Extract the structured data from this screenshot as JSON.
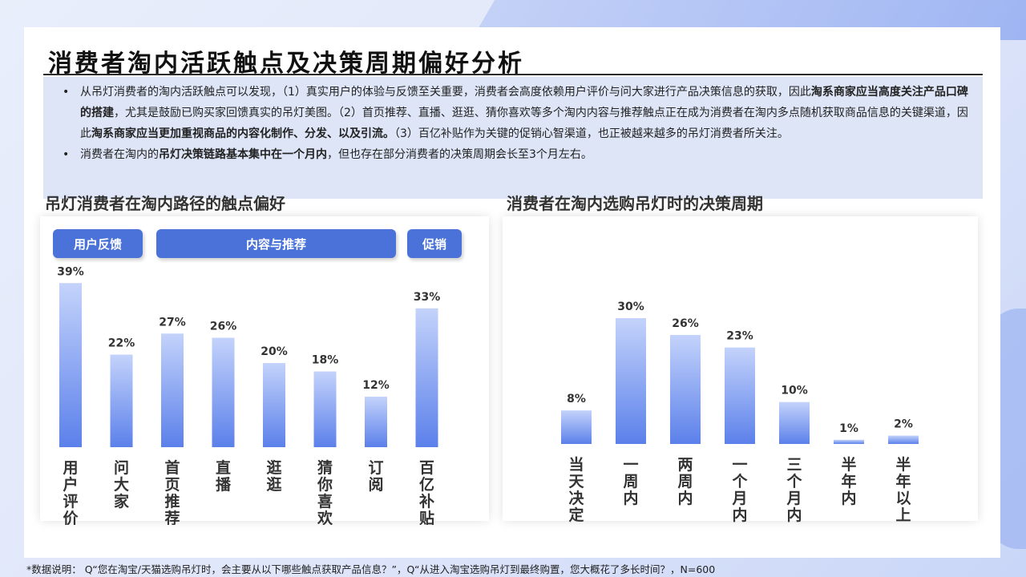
{
  "title": "消费者淘内活跃触点及决策周期偏好分析",
  "summary": {
    "bullet_symbol": "•",
    "b1_p1": "从吊灯消费者的淘内活跃触点可以发现，（1）真实用户的体验与反馈至关重要，消费者会高度依赖用户评价与问大家进行产品决策信息的获取，因此",
    "b1_bold1": "淘系商家应当高度关注产品口碑的搭建",
    "b1_p2": "，尤其是鼓励已购买家回馈真实的吊灯美图。（2）首页推荐、直播、逛逛、猜你喜欢等多个淘内内容与推荐触点正在成为消费者在淘内多点随机获取商品信息的关键渠道，因此",
    "b1_bold2": "淘系商家应当更加重视商品的内容化制作、分发、以及引流。",
    "b1_p3": "（3）百亿补贴作为关键的促销心智渠道，也正被越来越多的吊灯消费者所关注。",
    "b2_p1": "消费者在淘内的",
    "b2_bold": "吊灯决策链路基本集中在一个月内",
    "b2_p2": "，但也存在部分消费者的决策周期会长至3个月左右。"
  },
  "left_section_title": "吊灯消费者在淘内路径的触点偏好",
  "right_section_title": "消费者在淘内选购吊灯时的决策周期",
  "category_tags": [
    {
      "label": "用户反馈"
    },
    {
      "label": "内容与推荐"
    },
    {
      "label": "促销"
    }
  ],
  "chart_data": [
    {
      "type": "bar",
      "title": "吊灯消费者在淘内路径的触点偏好",
      "categories": [
        "用户评价",
        "问大家",
        "首页推荐",
        "直播",
        "逛逛",
        "猜你喜欢",
        "订阅",
        "百亿补贴"
      ],
      "values": [
        39,
        22,
        27,
        26,
        20,
        18,
        12,
        33
      ],
      "value_labels": [
        "39%",
        "22%",
        "27%",
        "26%",
        "20%",
        "18%",
        "12%",
        "33%"
      ],
      "unit": "%",
      "ylim": [
        0,
        40
      ],
      "grid": false,
      "color_top": "#c4d3fb",
      "color_bottom": "#5b80ea"
    },
    {
      "type": "bar",
      "title": "消费者在淘内选购吊灯时的决策周期",
      "categories": [
        "当天决定",
        "一周内",
        "两周内",
        "一个月内",
        "三个月内",
        "半年内",
        "半年以上"
      ],
      "values": [
        8,
        30,
        26,
        23,
        10,
        1,
        2
      ],
      "value_labels": [
        "8%",
        "30%",
        "26%",
        "23%",
        "10%",
        "1%",
        "2%"
      ],
      "unit": "%",
      "ylim": [
        0,
        30
      ],
      "grid": false,
      "color_top": "#c4d3fb",
      "color_bottom": "#5b80ea"
    }
  ],
  "footnote": "*数据说明： Q“您在淘宝/天猫选购吊灯时，会主要从以下哪些触点获取产品信息？”，Q“从进入淘宝选购吊灯到最终购置，您大概花了多长时间？，N=600"
}
